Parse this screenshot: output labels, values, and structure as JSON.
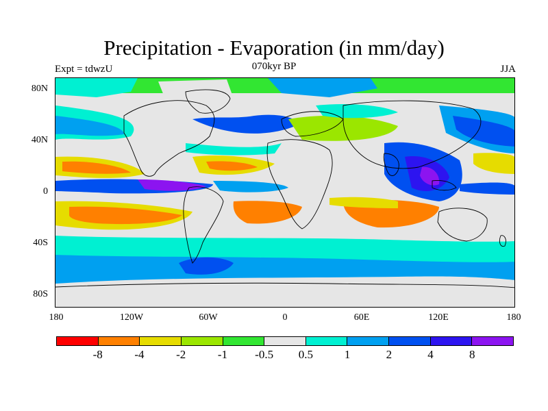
{
  "title": "Precipitation - Evaporation (in mm/day)",
  "subtitle": "070kyr BP",
  "left_label": "Expt = tdwzU",
  "right_label": "JJA",
  "axes": {
    "y_ticks": [
      "80N",
      "40N",
      "0",
      "40S",
      "80S"
    ],
    "x_ticks": [
      "180",
      "120W",
      "60W",
      "0",
      "60E",
      "120E",
      "180"
    ]
  },
  "colorbar": {
    "colors": [
      "#ff0000",
      "#ff8000",
      "#e6dc00",
      "#9be600",
      "#32e632",
      "#e6e6e6",
      "#00f0d2",
      "#00a0f0",
      "#0050f0",
      "#2d14f0",
      "#8c14f0"
    ],
    "labels": [
      "-8",
      "-4",
      "-2",
      "-1",
      "-0.5",
      "0.5",
      "1",
      "2",
      "4",
      "8"
    ]
  }
}
